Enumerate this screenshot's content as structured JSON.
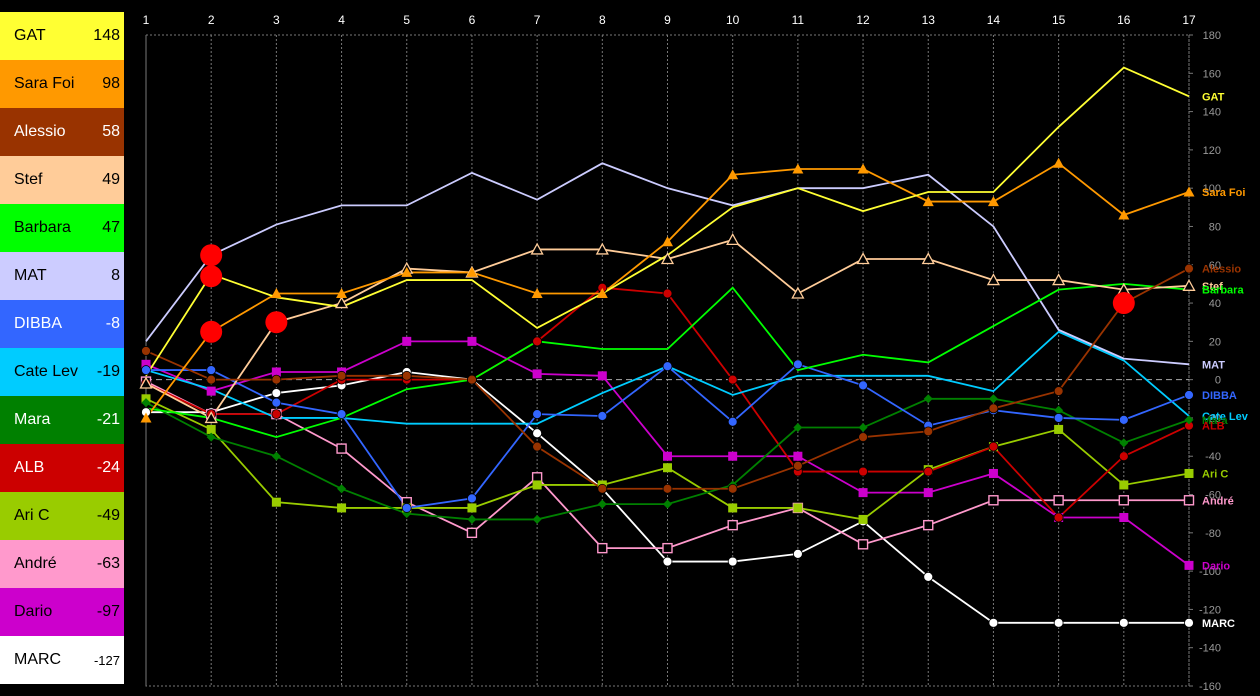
{
  "chart_data": {
    "type": "line",
    "x": [
      1,
      2,
      3,
      4,
      5,
      6,
      7,
      8,
      9,
      10,
      11,
      12,
      13,
      14,
      15,
      16,
      17
    ],
    "ylim": [
      -160,
      180
    ],
    "yticks": [
      180,
      160,
      140,
      120,
      100,
      80,
      60,
      40,
      20,
      0,
      -20,
      -40,
      -60,
      -80,
      -100,
      -120,
      -140,
      -160
    ],
    "grid": true,
    "legend_placement": "left",
    "series": [
      {
        "name": "GAT",
        "total": "148",
        "color": "#ffff33",
        "text_color": "#000000",
        "marker": "none",
        "values": [
          2,
          55,
          43,
          38,
          52,
          52,
          27,
          45,
          65,
          90,
          100,
          88,
          98,
          98,
          132,
          163,
          148
        ]
      },
      {
        "name": "Sara Foi",
        "total": "98",
        "color": "#ff9900",
        "text_color": "#000000",
        "marker": "triangle",
        "values": [
          -20,
          25,
          45,
          45,
          56,
          56,
          45,
          45,
          72,
          107,
          110,
          110,
          93,
          93,
          113,
          86,
          98
        ]
      },
      {
        "name": "Alessio",
        "total": "58",
        "color": "#993300",
        "text_color": "#ffffff",
        "marker": "circle",
        "values": [
          15,
          0,
          0,
          2,
          2,
          0,
          -35,
          -57,
          -57,
          -57,
          -45,
          -30,
          -27,
          -15,
          -6,
          40,
          58
        ]
      },
      {
        "name": "Stef",
        "total": "49",
        "color": "#ffcc99",
        "text_color": "#000000",
        "marker": "triangle-open",
        "values": [
          -2,
          -20,
          30,
          40,
          58,
          56,
          68,
          68,
          63,
          73,
          45,
          63,
          63,
          52,
          52,
          47,
          49
        ]
      },
      {
        "name": "Barbara",
        "total": "47",
        "color": "#00ff00",
        "text_color": "#000000",
        "marker": "none",
        "values": [
          -15,
          -20,
          -30,
          -20,
          -5,
          0,
          20,
          16,
          16,
          48,
          5,
          13,
          9,
          28,
          47,
          50,
          47
        ]
      },
      {
        "name": "MAT",
        "total": "8",
        "color": "#ccccff",
        "text_color": "#000000",
        "marker": "none",
        "values": [
          20,
          65,
          81,
          91,
          91,
          108,
          94,
          113,
          100,
          91,
          100,
          100,
          107,
          80,
          26,
          11,
          8
        ]
      },
      {
        "name": "DIBBA",
        "total": "-8",
        "color": "#3366ff",
        "text_color": "#ffffff",
        "marker": "circle",
        "values": [
          5,
          5,
          -12,
          -18,
          -67,
          -62,
          -18,
          -19,
          7,
          -22,
          8,
          -3,
          -24,
          -16,
          -20,
          -21,
          -8
        ]
      },
      {
        "name": "Cate Lev",
        "total": "-19",
        "color": "#00ccff",
        "text_color": "#000000",
        "marker": "none",
        "values": [
          5,
          -5,
          -20,
          -20,
          -23,
          -23,
          -23,
          -7,
          7,
          -8,
          2,
          2,
          2,
          -6,
          25,
          10,
          -19
        ]
      },
      {
        "name": "Mara",
        "total": "-21",
        "color": "#008000",
        "text_color": "#ffffff",
        "marker": "diamond",
        "values": [
          -12,
          -30,
          -40,
          -57,
          -70,
          -73,
          -73,
          -65,
          -65,
          -55,
          -25,
          -25,
          -10,
          -10,
          -16,
          -33,
          -21
        ]
      },
      {
        "name": "ALB",
        "total": "-24",
        "color": "#cc0000",
        "text_color": "#ffffff",
        "marker": "circle",
        "values": [
          -2,
          -18,
          -18,
          0,
          0,
          0,
          20,
          48,
          45,
          0,
          -48,
          -48,
          -48,
          -35,
          -72,
          -40,
          -24
        ]
      },
      {
        "name": "Ari C",
        "total": "-49",
        "color": "#99cc00",
        "text_color": "#000000",
        "marker": "square",
        "values": [
          -10,
          -26,
          -64,
          -67,
          -67,
          -67,
          -55,
          -55,
          -46,
          -67,
          -67,
          -73,
          -47,
          -35,
          -26,
          -55,
          -49
        ]
      },
      {
        "name": "André",
        "total": "-63",
        "color": "#ff99cc",
        "text_color": "#000000",
        "marker": "square-open",
        "values": [
          -1,
          -18,
          -18,
          -36,
          -64,
          -80,
          -51,
          -88,
          -88,
          -76,
          -67,
          -86,
          -76,
          -63,
          -63,
          -63,
          -63
        ]
      },
      {
        "name": "Dario",
        "total": "-97",
        "color": "#cc00cc",
        "text_color": "#000000",
        "marker": "square",
        "values": [
          8,
          -6,
          4,
          4,
          20,
          20,
          3,
          2,
          -40,
          -40,
          -40,
          -59,
          -59,
          -49,
          -72,
          -72,
          -97
        ]
      },
      {
        "name": "MARC",
        "total": "-127",
        "color": "#ffffff",
        "text_color": "#000000",
        "marker": "circle",
        "values": [
          -17,
          -17,
          -7,
          -3,
          4,
          0,
          -28,
          -57,
          -95,
          -95,
          -91,
          -74,
          -103,
          -127,
          -127,
          -127,
          -127
        ]
      }
    ],
    "highlights": [
      {
        "x": 2,
        "y": 65
      },
      {
        "x": 2,
        "y": 54
      },
      {
        "x": 2,
        "y": 25
      },
      {
        "x": 3,
        "y": 30
      },
      {
        "x": 16,
        "y": 40
      }
    ],
    "highlight_color": "#ff0000"
  }
}
